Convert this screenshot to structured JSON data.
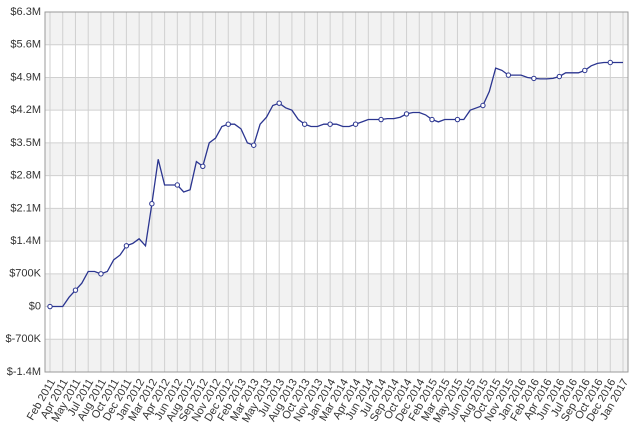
{
  "chart_data": {
    "type": "line",
    "categories": [
      "Feb 2011",
      null,
      "Apr 2011",
      null,
      "May 2011",
      null,
      "Jul 2011",
      null,
      "Aug 2011",
      null,
      "Oct 2011",
      null,
      "Dec 2011",
      null,
      "Jan 2012",
      null,
      "Mar 2012",
      null,
      "Apr 2012",
      null,
      "Jun 2012",
      null,
      "Aug 2012",
      null,
      "Sep 2012",
      null,
      "Nov 2012",
      null,
      "Dec 2012",
      null,
      "Feb 2013",
      null,
      "Mar 2013",
      null,
      "May 2013",
      null,
      "Jul 2013",
      null,
      "Aug 2013",
      null,
      "Oct 2013",
      null,
      "Nov 2013",
      null,
      "Jan 2014",
      null,
      "Mar 2014",
      null,
      "Apr 2014",
      null,
      "Jun 2014",
      null,
      "Jul 2014",
      null,
      "Sep 2014",
      null,
      "Oct 2014",
      null,
      "Dec 2014",
      null,
      "Feb 2015",
      null,
      "Mar 2015",
      null,
      "May 2015",
      null,
      "Jun 2015",
      null,
      "Aug 2015",
      null,
      "Oct 2015",
      null,
      "Nov 2015",
      null,
      "Jan 2016",
      null,
      "Feb 2016",
      null,
      "Apr 2016",
      null,
      "Jun 2016",
      null,
      "Jul 2016",
      null,
      "Sep 2016",
      null,
      "Oct 2016",
      null,
      "Dec 2016",
      null,
      "Jan 2017"
    ],
    "series": [
      {
        "color": "#2b3590",
        "values": [
          0,
          0,
          0,
          200000,
          350000,
          500000,
          750000,
          750000,
          700000,
          750000,
          1000000,
          1100000,
          1300000,
          1350000,
          1450000,
          1300000,
          2200000,
          3150000,
          2600000,
          2600000,
          2600000,
          2450000,
          2500000,
          3100000,
          3000000,
          3500000,
          3600000,
          3850000,
          3900000,
          3900000,
          3800000,
          3500000,
          3450000,
          3900000,
          4050000,
          4300000,
          4350000,
          4250000,
          4200000,
          4000000,
          3900000,
          3850000,
          3850000,
          3900000,
          3900000,
          3900000,
          3850000,
          3850000,
          3900000,
          3950000,
          4000000,
          4000000,
          4000000,
          4020000,
          4020000,
          4050000,
          4120000,
          4150000,
          4150000,
          4100000,
          4000000,
          3950000,
          4000000,
          4000000,
          4000000,
          4000000,
          4200000,
          4250000,
          4300000,
          4600000,
          5100000,
          5050000,
          4950000,
          4950000,
          4950000,
          4900000,
          4880000,
          4870000,
          4870000,
          4880000,
          4920000,
          5000000,
          5000000,
          5000000,
          5050000,
          5150000,
          5200000,
          5220000,
          5220000,
          5220000,
          5220000
        ]
      }
    ],
    "ylim": [
      -1400000,
      6300000
    ],
    "yticks": [
      {
        "value": -1400000,
        "label": "$-1.4M"
      },
      {
        "value": -700000,
        "label": "$-700K"
      },
      {
        "value": 0,
        "label": "$0"
      },
      {
        "value": 700000,
        "label": "$700K"
      },
      {
        "value": 1400000,
        "label": "$1.4M"
      },
      {
        "value": 2100000,
        "label": "$2.1M"
      },
      {
        "value": 2800000,
        "label": "$2.8M"
      },
      {
        "value": 3500000,
        "label": "$3.5M"
      },
      {
        "value": 4200000,
        "label": "$4.2M"
      },
      {
        "value": 4900000,
        "label": "$4.9M"
      },
      {
        "value": 5600000,
        "label": "$5.6M"
      },
      {
        "value": 6300000,
        "label": "$6.3M"
      }
    ],
    "grid": true
  }
}
